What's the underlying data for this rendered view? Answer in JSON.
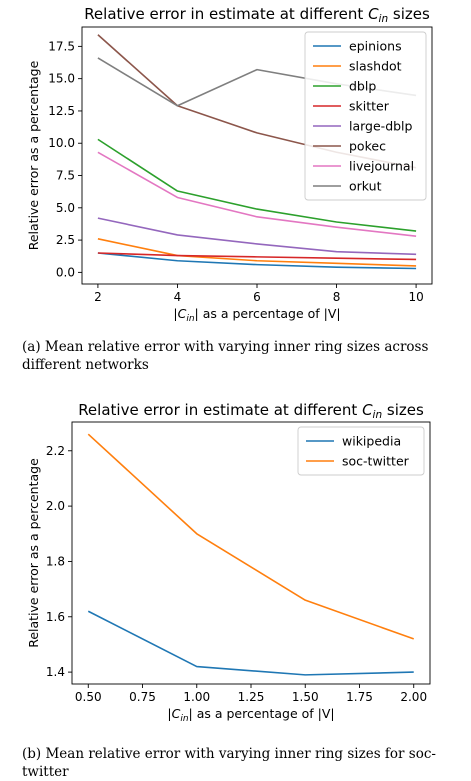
{
  "chart_data": [
    {
      "type": "line",
      "title": "Relative error in estimate at different C_in sizes",
      "title_prefix": "Relative error in estimate at different ",
      "title_sym": "C",
      "title_sub": "in",
      "title_suffix": " sizes",
      "xlabel": "|C_in| as a percentage of |V|",
      "xlabel_pre": "|",
      "xlabel_sym": "C",
      "xlabel_sub": "in",
      "xlabel_post": "| as a percentage of |V|",
      "ylabel": "Relative error as a percentage",
      "xlim": [
        1.6,
        10.4
      ],
      "ylim": [
        -0.9,
        19.0
      ],
      "xticks": [
        2,
        4,
        6,
        8,
        10
      ],
      "yticks": [
        0.0,
        2.5,
        5.0,
        7.5,
        10.0,
        12.5,
        15.0,
        17.5
      ],
      "x_format": 0,
      "y_format": 1,
      "grid": false,
      "legend_position": "top-right",
      "x": [
        2,
        4,
        6,
        8,
        10
      ],
      "series": [
        {
          "name": "epinions",
          "color": "#1f77b4",
          "values": [
            1.5,
            0.9,
            0.6,
            0.4,
            0.3
          ]
        },
        {
          "name": "slashdot",
          "color": "#ff7f0e",
          "values": [
            2.6,
            1.3,
            0.9,
            0.7,
            0.5
          ]
        },
        {
          "name": "dblp",
          "color": "#2ca02c",
          "values": [
            10.3,
            6.3,
            4.9,
            3.9,
            3.2
          ]
        },
        {
          "name": "skitter",
          "color": "#d62728",
          "values": [
            1.5,
            1.3,
            1.2,
            1.1,
            1.0
          ]
        },
        {
          "name": "large-dblp",
          "color": "#9467bd",
          "values": [
            4.2,
            2.9,
            2.2,
            1.6,
            1.4
          ]
        },
        {
          "name": "pokec",
          "color": "#8c564b",
          "values": [
            18.4,
            12.9,
            10.8,
            9.3,
            8.1
          ]
        },
        {
          "name": "livejournal",
          "color": "#e377c2",
          "values": [
            9.3,
            5.8,
            4.3,
            3.5,
            2.8
          ]
        },
        {
          "name": "orkut",
          "color": "#7f7f7f",
          "values": [
            16.6,
            12.9,
            15.7,
            14.6,
            13.7
          ]
        }
      ]
    },
    {
      "type": "line",
      "title": "Relative error in estimate at different C_in sizes",
      "title_prefix": "Relative error in estimate at different ",
      "title_sym": "C",
      "title_sub": "in",
      "title_suffix": " sizes",
      "xlabel": "|C_in| as a percentage of |V|",
      "xlabel_pre": "|",
      "xlabel_sym": "C",
      "xlabel_sub": "in",
      "xlabel_post": "| as a percentage of |V|",
      "ylabel": "Relative error as a percentage",
      "xlim": [
        0.425,
        2.075
      ],
      "ylim": [
        1.357,
        2.304
      ],
      "xticks": [
        0.5,
        0.75,
        1.0,
        1.25,
        1.5,
        1.75,
        2.0
      ],
      "yticks": [
        1.4,
        1.6,
        1.8,
        2.0,
        2.2
      ],
      "x_format": 2,
      "y_format": 1,
      "grid": false,
      "legend_position": "top-right",
      "x": [
        0.5,
        1.0,
        1.5,
        2.0
      ],
      "series": [
        {
          "name": "wikipedia",
          "color": "#1f77b4",
          "values": [
            1.62,
            1.42,
            1.39,
            1.4
          ]
        },
        {
          "name": "soc-twitter",
          "color": "#ff7f0e",
          "values": [
            2.26,
            1.9,
            1.66,
            1.52
          ]
        }
      ]
    }
  ],
  "captions": {
    "a": "(a)  Mean relative error with varying inner ring sizes across different networks",
    "b": "(b)  Mean relative error with varying inner ring sizes for soc-twitter"
  }
}
